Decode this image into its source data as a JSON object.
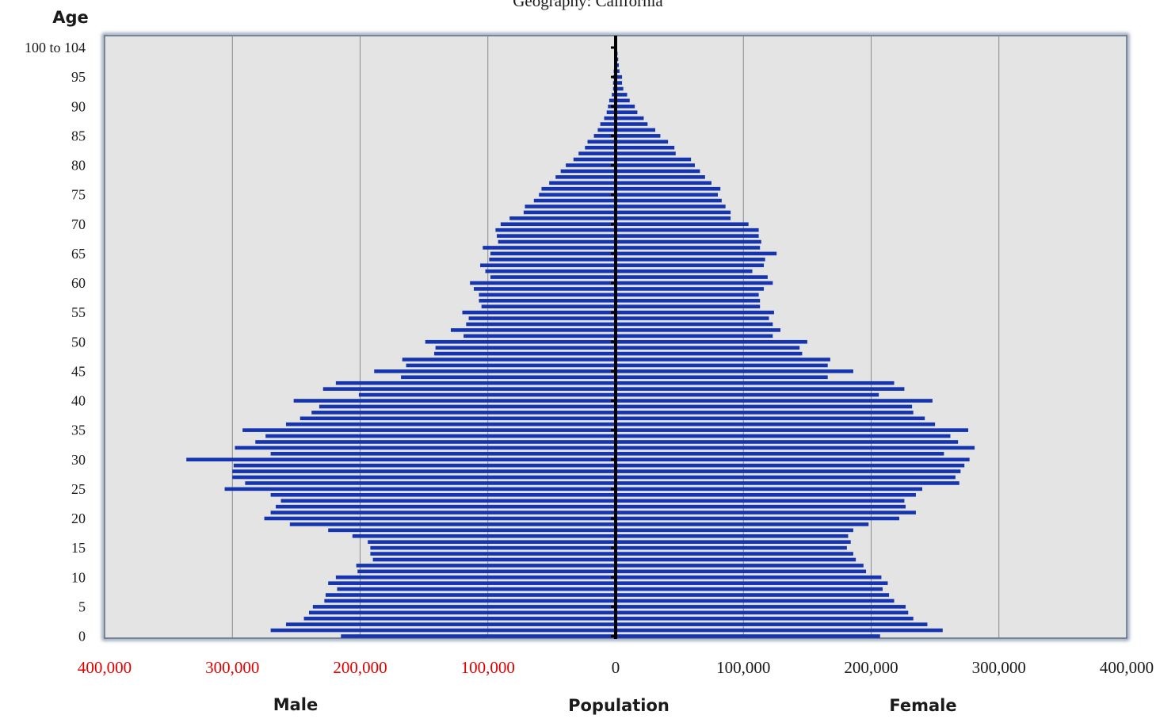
{
  "chart_data": {
    "type": "bar",
    "orientation": "horizontal",
    "subtitle": "Geography:  California",
    "y_axis_title": "Age",
    "x_axis_title": "Population",
    "left_side_label": "Male",
    "right_side_label": "Female",
    "xlim": [
      -400000,
      400000
    ],
    "ylim": [
      0,
      100
    ],
    "x_tick_values": [
      -400000,
      -300000,
      -200000,
      -100000,
      0,
      100000,
      200000,
      300000,
      400000
    ],
    "x_tick_labels": [
      "400,000",
      "300,000",
      "200,000",
      "100,000",
      "0",
      "100,000",
      "200,000",
      "300,000",
      "400,000"
    ],
    "y_tick_values": [
      0,
      5,
      10,
      15,
      20,
      25,
      30,
      35,
      40,
      45,
      50,
      55,
      60,
      65,
      70,
      75,
      80,
      85,
      90,
      95,
      100
    ],
    "y_tick_labels": [
      "0",
      "5",
      "10",
      "15",
      "20",
      "25",
      "30",
      "35",
      "40",
      "45",
      "50",
      "55",
      "60",
      "65",
      "70",
      "75",
      "80",
      "85",
      "90",
      "95",
      "100 to 104"
    ],
    "grid": "vertical",
    "categories": [
      "0",
      "1",
      "2",
      "3",
      "4",
      "5",
      "6",
      "7",
      "8",
      "9",
      "10",
      "11",
      "12",
      "13",
      "14",
      "15",
      "16",
      "17",
      "18",
      "19",
      "20",
      "21",
      "22",
      "23",
      "24",
      "25",
      "26",
      "27",
      "28",
      "29",
      "30",
      "31",
      "32",
      "33",
      "34",
      "35",
      "36",
      "37",
      "38",
      "39",
      "40",
      "41",
      "42",
      "43",
      "44",
      "45",
      "46",
      "47",
      "48",
      "49",
      "50",
      "51",
      "52",
      "53",
      "54",
      "55",
      "56",
      "57",
      "58",
      "59",
      "60",
      "61",
      "62",
      "63",
      "64",
      "65",
      "66",
      "67",
      "68",
      "69",
      "70",
      "71",
      "72",
      "73",
      "74",
      "75",
      "76",
      "77",
      "78",
      "79",
      "80",
      "81",
      "82",
      "83",
      "84",
      "85",
      "86",
      "87",
      "88",
      "89",
      "90",
      "91",
      "92",
      "93",
      "94",
      "95",
      "96",
      "97",
      "98",
      "99",
      "100 to 104"
    ],
    "series": [
      {
        "name": "Male",
        "values": [
          215000,
          270000,
          258000,
          244000,
          240000,
          237000,
          228000,
          227000,
          218000,
          225000,
          219000,
          202000,
          203000,
          190000,
          192000,
          192000,
          194000,
          206000,
          225000,
          255000,
          275000,
          270000,
          266000,
          262000,
          270000,
          306000,
          290000,
          300000,
          300000,
          299000,
          336000,
          270000,
          298000,
          282000,
          274000,
          292000,
          258000,
          247000,
          238000,
          232000,
          252000,
          201000,
          229000,
          219000,
          168000,
          189000,
          164000,
          167000,
          142000,
          141000,
          149000,
          119000,
          129000,
          117000,
          115000,
          120000,
          105000,
          107000,
          107000,
          111000,
          114000,
          98000,
          102000,
          106000,
          99000,
          98000,
          104000,
          92000,
          93000,
          94000,
          90000,
          83000,
          72000,
          71000,
          64000,
          60000,
          58000,
          52000,
          47000,
          43000,
          39000,
          33000,
          29000,
          24000,
          22000,
          17000,
          14000,
          12000,
          9000,
          7000,
          6000,
          5000,
          3000,
          2000,
          2000,
          2000,
          1500,
          1000,
          800,
          600,
          500
        ],
        "color": "#1535b0"
      },
      {
        "name": "Female",
        "values": [
          207000,
          256000,
          244000,
          233000,
          229000,
          227000,
          218000,
          214000,
          209000,
          213000,
          208000,
          196000,
          194000,
          188000,
          186000,
          181000,
          184000,
          182000,
          186000,
          198000,
          222000,
          235000,
          227000,
          226000,
          235000,
          240000,
          269000,
          266000,
          270000,
          273000,
          277000,
          257000,
          281000,
          268000,
          262000,
          276000,
          250000,
          242000,
          233000,
          232000,
          248000,
          206000,
          226000,
          218000,
          166000,
          186000,
          166000,
          168000,
          146000,
          144000,
          150000,
          123000,
          129000,
          123000,
          120000,
          124000,
          113000,
          113000,
          112000,
          116000,
          123000,
          119000,
          107000,
          116000,
          117000,
          126000,
          113000,
          114000,
          112000,
          112000,
          104000,
          90000,
          90000,
          86000,
          83000,
          80000,
          82000,
          75000,
          70000,
          66000,
          62000,
          59000,
          47000,
          46000,
          41000,
          35000,
          31000,
          25000,
          22000,
          17000,
          15000,
          11000,
          9000,
          6000,
          5000,
          5000,
          3000,
          2500,
          2000,
          1500,
          1000
        ],
        "color": "#1535b0"
      }
    ]
  }
}
